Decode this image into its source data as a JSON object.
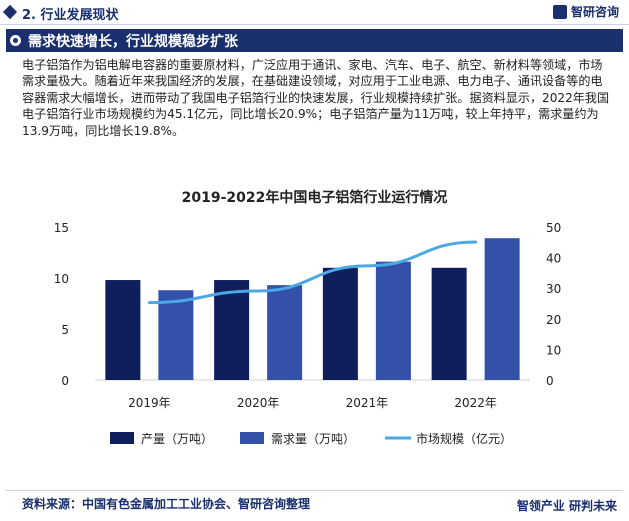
{
  "header": {
    "section": "2. 行业发展现状",
    "brand": "智研咨询"
  },
  "band": {
    "title": "需求快速增长，行业规模稳步扩张"
  },
  "paragraph": "电子铝箔作为铝电解电容器的重要原材料，广泛应用于通讯、家电、汽车、电子、航空、新材料等领域，市场需求量极大。随着近年来我国经济的发展，在基础建设领域，对应用于工业电源、电力电子、通讯设备等的电容器需求大幅增长，进而带动了我国电子铝箔行业的快速发展，行业规模持续扩张。据资料显示，2022年我国电子铝箔行业市场规模约为45.1亿元，同比增长20.9%；电子铝箔产量为11万吨，较上年持平，需求量约为13.9万吨，同比增长19.8%。",
  "footer": {
    "source": "资料来源：中国有色金属加工工业协会、智研咨询整理",
    "brand": "智领产业 研判未来"
  },
  "colors": {
    "navy": "#1a2f6e",
    "bar_output": "#0f1f5c",
    "bar_demand": "#3351a8",
    "line_market": "#4aa8e6"
  },
  "chart_data": {
    "type": "bar",
    "title": "2019-2022年中国电子铝箔行业运行情况",
    "categories": [
      "2019年",
      "2020年",
      "2021年",
      "2022年"
    ],
    "series": [
      {
        "name": "产量（万吨）",
        "type": "bar",
        "axis": "left",
        "values": [
          9.8,
          9.8,
          11.0,
          11.0
        ]
      },
      {
        "name": "需求量（万吨）",
        "type": "bar",
        "axis": "left",
        "values": [
          8.8,
          9.3,
          11.6,
          13.9
        ]
      },
      {
        "name": "市场规模（亿元）",
        "type": "line",
        "axis": "right",
        "values": [
          25.3,
          29.1,
          37.3,
          45.1
        ]
      }
    ],
    "y_left": {
      "ylim": [
        0,
        15
      ],
      "ticks": [
        0,
        5,
        10,
        15
      ]
    },
    "y_right": {
      "ylim": [
        0,
        50
      ],
      "ticks": [
        0,
        10,
        20,
        30,
        40,
        50
      ]
    },
    "legend": "bottom",
    "grid": false
  }
}
